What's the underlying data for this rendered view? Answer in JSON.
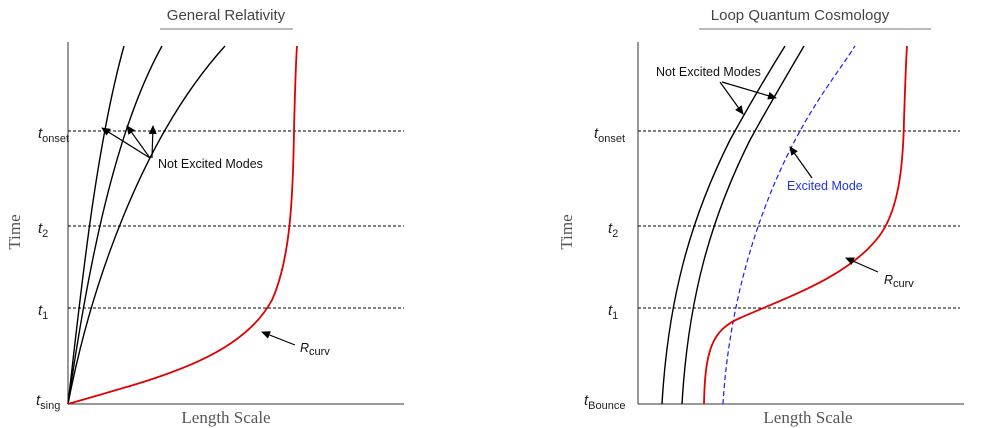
{
  "left_panel": {
    "title": "General Relativity",
    "xlabel": "Length Scale",
    "ylabel": "Time",
    "ticks": [
      {
        "main": "t",
        "sub": "onset"
      },
      {
        "main": "t",
        "sub": "2"
      },
      {
        "main": "t",
        "sub": "1"
      },
      {
        "main": "t",
        "sub": "sing"
      }
    ],
    "annotation_modes": "Not Excited Modes",
    "annotation_curv": {
      "main": "R",
      "sub": "curv"
    }
  },
  "right_panel": {
    "title": "Loop Quantum Cosmology",
    "xlabel": "Length Scale",
    "ylabel": "Time",
    "ticks": [
      {
        "main": "t",
        "sub": "onset"
      },
      {
        "main": "t",
        "sub": "2"
      },
      {
        "main": "t",
        "sub": "1"
      },
      {
        "main": "t",
        "sub": "Bounce"
      }
    ],
    "annotation_modes": "Not Excited Modes",
    "annotation_excited": "Excited Mode",
    "annotation_curv": {
      "main": "R",
      "sub": "curv"
    }
  },
  "colors": {
    "axis": "#333333",
    "mode_curve": "#000000",
    "curvature_curve": "#e00000",
    "excited_mode_curve": "#1a1aff",
    "dashed_line": "#000000"
  }
}
